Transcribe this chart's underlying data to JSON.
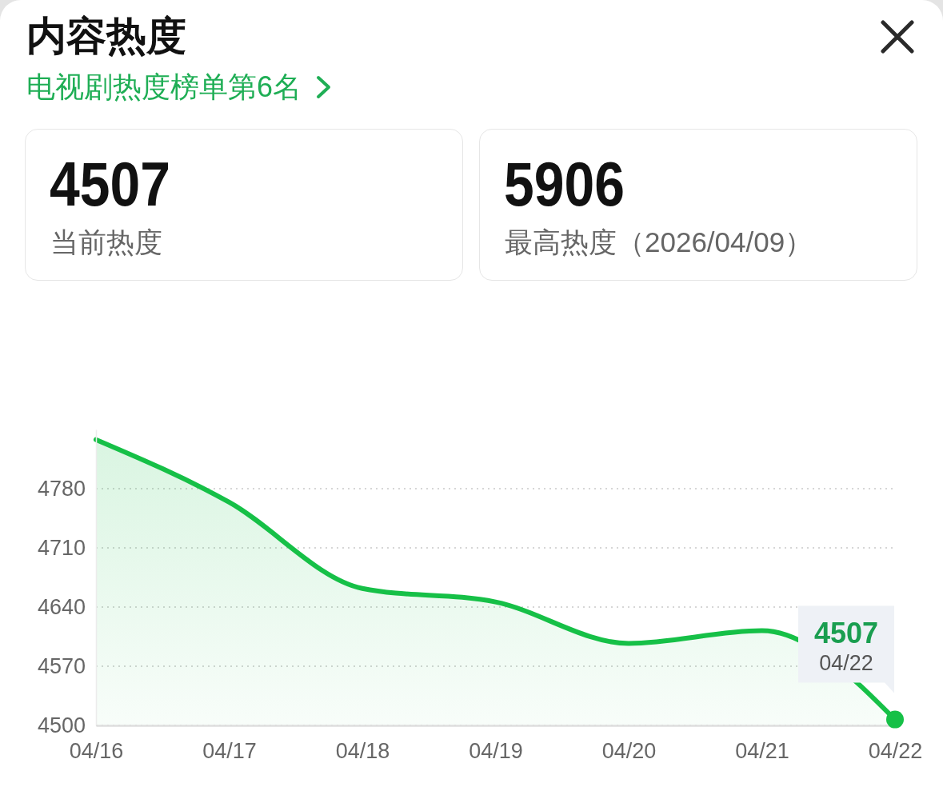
{
  "chart_data": {
    "type": "area",
    "title": "内容热度",
    "subtitle": "电视剧热度榜单第6名",
    "categories": [
      "04/16",
      "04/17",
      "04/18",
      "04/19",
      "04/20",
      "04/21",
      "04/22"
    ],
    "series": [
      {
        "color": "#16c047",
        "values": [
          4838,
          4764,
          4662,
          4646,
          4597,
          4612,
          4507
        ],
        "value_labels": [
          null,
          null,
          null,
          null,
          null,
          null,
          "4507"
        ]
      },
      {
        "type": "scatter",
        "color": "#16c047",
        "marker": "circle",
        "values": [
          null,
          null,
          null,
          null,
          null,
          null,
          4507
        ]
      }
    ],
    "ylim": [
      4500,
      4850
    ],
    "yticks": [
      4500,
      4570,
      4640,
      4710,
      4780
    ],
    "grid": "y",
    "marker": "none",
    "annotations": [
      "4507",
      "当前热度",
      "5906",
      "最高热度（2026/04/09）",
      {
        "text": "04/22",
        "x": "04/22",
        "y": 4507
      }
    ]
  }
}
